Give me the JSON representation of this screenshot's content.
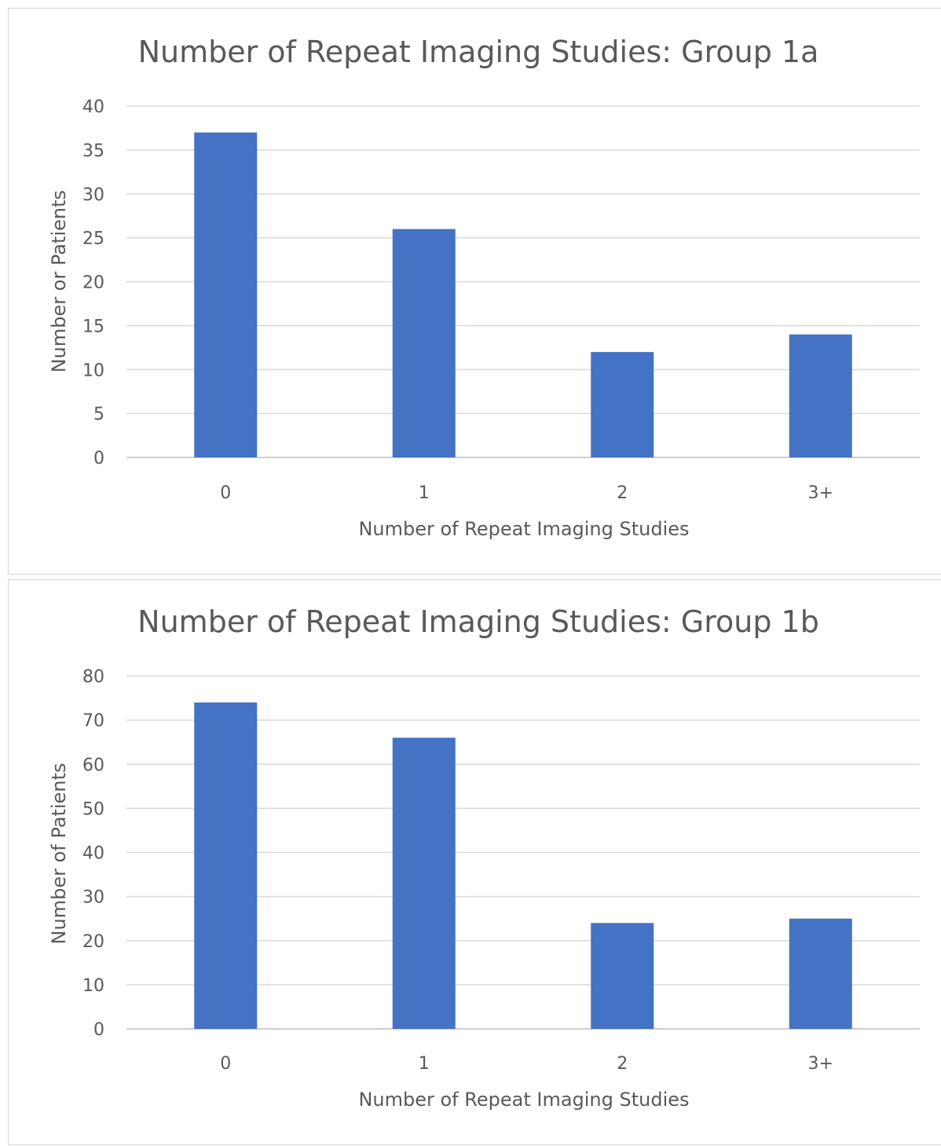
{
  "chart_data": [
    {
      "type": "bar",
      "title": "Number of Repeat Imaging Studies: Group 1a",
      "xlabel": "Number of Repeat Imaging Studies",
      "ylabel": "Number or Patients",
      "categories": [
        "0",
        "1",
        "2",
        "3+"
      ],
      "values": [
        37,
        26,
        12,
        14
      ],
      "ylim": [
        0,
        40
      ],
      "yticks": [
        0,
        5,
        10,
        15,
        20,
        25,
        30,
        35,
        40
      ],
      "grid": true,
      "legend": "none",
      "bar_color": "#4472C4"
    },
    {
      "type": "bar",
      "title": "Number of Repeat Imaging Studies: Group 1b",
      "xlabel": "Number of Repeat Imaging Studies",
      "ylabel": "Number of Patients",
      "categories": [
        "0",
        "1",
        "2",
        "3+"
      ],
      "values": [
        74,
        66,
        24,
        25
      ],
      "ylim": [
        0,
        80
      ],
      "yticks": [
        0,
        10,
        20,
        30,
        40,
        50,
        60,
        70,
        80
      ],
      "grid": true,
      "legend": "none",
      "bar_color": "#4472C4"
    }
  ]
}
